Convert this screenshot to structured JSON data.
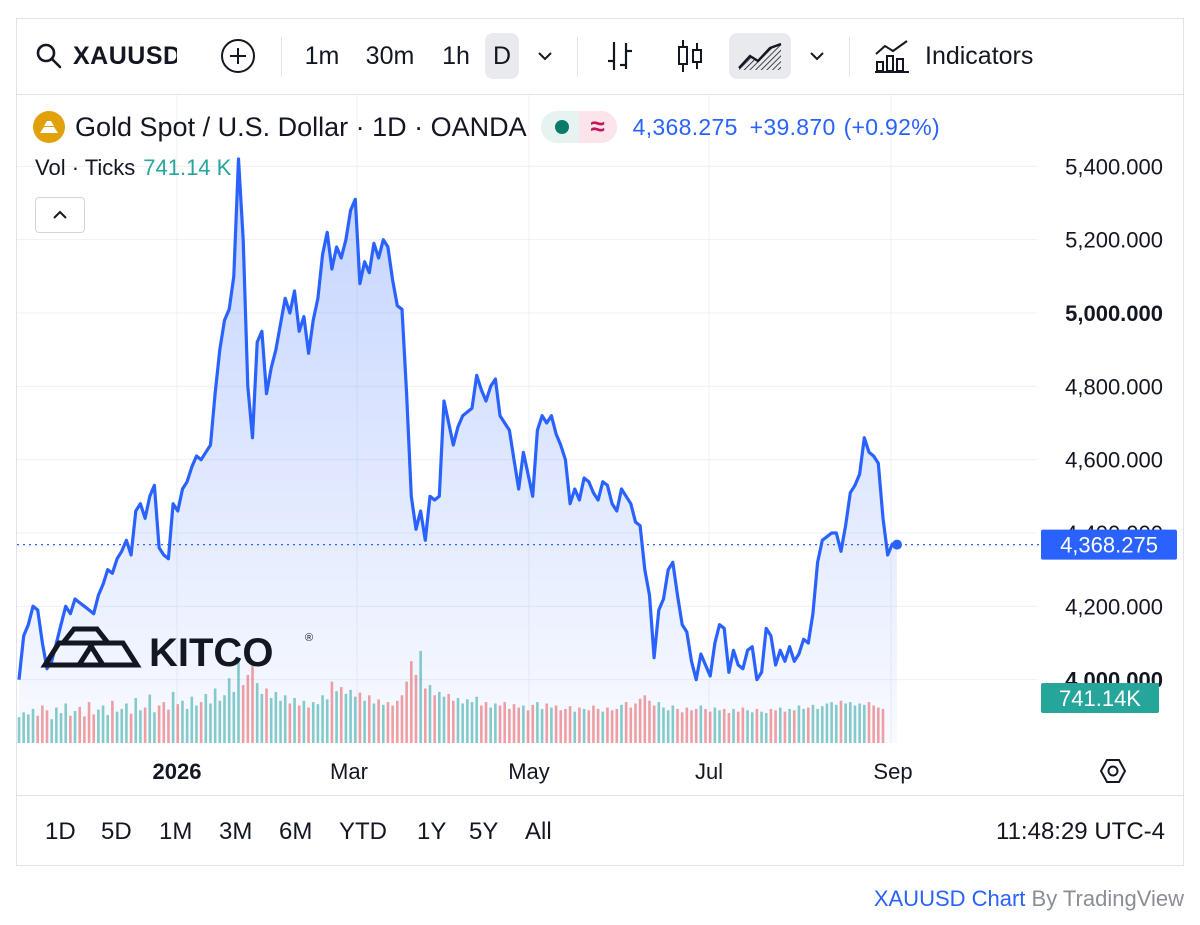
{
  "toolbar": {
    "symbol": "XAUUSD",
    "intervals": [
      "1m",
      "30m",
      "1h",
      "D"
    ],
    "active_interval": "D",
    "indicators_label": "Indicators"
  },
  "legend": {
    "title": "Gold Spot / U.S. Dollar · 1D · OANDA",
    "last": "4,368.275",
    "change": "+39.870",
    "change_pct": "(+0.92%)",
    "vol_label": "Vol · Ticks",
    "vol_value": "741.14 K"
  },
  "colors": {
    "line": "#2962ff",
    "area": "#2962ff",
    "vol_up": "#26a69a",
    "vol_down": "#ef5350",
    "price_tag": "#2962ff",
    "vol_tag": "#26a69a"
  },
  "watermark": "KITCO",
  "badges": {
    "price": "4,368.275",
    "volume": "741.14K"
  },
  "range_buttons": [
    "1D",
    "5D",
    "1M",
    "3M",
    "6M",
    "YTD",
    "1Y",
    "5Y",
    "All"
  ],
  "clock": "11:48:29 UTC-4",
  "attribution": {
    "link": "XAUUSD Chart",
    "rest": " By TradingView"
  },
  "chart_data": {
    "type": "line",
    "ylim": [
      3980,
      5420
    ],
    "y_ticks": [
      "5,400.000",
      "5,200.000",
      "5,000.000",
      "4,800.000",
      "4,600.000",
      "4,400.000",
      "4,200.000",
      "4,000.000"
    ],
    "y_tick_values": [
      5400,
      5200,
      5000,
      4800,
      4600,
      4400,
      4200,
      4000
    ],
    "x_labels": [
      "2026",
      "Mar",
      "May",
      "Jul",
      "Sep"
    ],
    "last_value": 4368.275,
    "series": [
      {
        "values": [
          4000,
          4120,
          4150,
          4200,
          4190,
          4100,
          4030,
          4050,
          4100,
          4150,
          4200,
          4180,
          4220,
          4210,
          4200,
          4190,
          4180,
          4230,
          4260,
          4300,
          4290,
          4330,
          4350,
          4380,
          4340,
          4460,
          4480,
          4440,
          4500,
          4530,
          4360,
          4340,
          4330,
          4480,
          4460,
          4520,
          4540,
          4580,
          4610,
          4600,
          4620,
          4640,
          4780,
          4900,
          4980,
          5010,
          5100,
          5420,
          5200,
          4800,
          4660,
          4920,
          4950,
          4780,
          4850,
          4900,
          4970,
          5040,
          5000,
          5060,
          4950,
          4990,
          4890,
          4980,
          5040,
          5160,
          5220,
          5120,
          5180,
          5150,
          5200,
          5280,
          5310,
          5080,
          5140,
          5110,
          5190,
          5150,
          5200,
          5180,
          5090,
          5020,
          5010,
          4780,
          4500,
          4410,
          4460,
          4380,
          4500,
          4490,
          4500,
          4760,
          4700,
          4640,
          4690,
          4720,
          4730,
          4740,
          4830,
          4790,
          4760,
          4800,
          4820,
          4720,
          4700,
          4680,
          4600,
          4520,
          4620,
          4560,
          4500,
          4680,
          4720,
          4700,
          4720,
          4670,
          4640,
          4600,
          4480,
          4520,
          4490,
          4550,
          4540,
          4510,
          4490,
          4540,
          4530,
          4480,
          4460,
          4520,
          4500,
          4480,
          4430,
          4420,
          4300,
          4230,
          4060,
          4190,
          4220,
          4300,
          4320,
          4230,
          4150,
          4130,
          4050,
          4000,
          4070,
          4040,
          4010,
          4100,
          4150,
          4140,
          4020,
          4080,
          4040,
          4030,
          4080,
          4090,
          4000,
          4020,
          4140,
          4120,
          4040,
          4080,
          4050,
          4090,
          4050,
          4070,
          4110,
          4100,
          4180,
          4320,
          4380,
          4390,
          4400,
          4400,
          4350,
          4420,
          4510,
          4530,
          4560,
          4660,
          4620,
          4610,
          4590,
          4440,
          4340,
          4370,
          4368
        ]
      }
    ],
    "volume_ratio": [
      0.38,
      0.45,
      0.42,
      0.5,
      0.4,
      0.55,
      0.48,
      0.35,
      0.52,
      0.44,
      0.58,
      0.4,
      0.47,
      0.53,
      0.39,
      0.6,
      0.42,
      0.49,
      0.55,
      0.41,
      0.62,
      0.46,
      0.5,
      0.58,
      0.43,
      0.66,
      0.48,
      0.52,
      0.71,
      0.45,
      0.55,
      0.6,
      0.49,
      0.75,
      0.57,
      0.62,
      0.5,
      0.68,
      0.55,
      0.6,
      0.72,
      0.58,
      0.8,
      0.62,
      0.7,
      0.95,
      0.75,
      1.25,
      0.85,
      1.0,
      1.15,
      0.88,
      0.72,
      0.8,
      0.66,
      0.75,
      0.62,
      0.7,
      0.58,
      0.66,
      0.55,
      0.62,
      0.52,
      0.6,
      0.57,
      0.7,
      0.64,
      0.9,
      0.76,
      0.82,
      0.72,
      0.78,
      0.68,
      0.74,
      0.62,
      0.7,
      0.58,
      0.64,
      0.56,
      0.6,
      0.55,
      0.62,
      0.7,
      0.9,
      1.2,
      1.0,
      1.35,
      0.8,
      0.85,
      0.7,
      0.75,
      0.68,
      0.72,
      0.62,
      0.66,
      0.58,
      0.64,
      0.6,
      0.68,
      0.55,
      0.6,
      0.52,
      0.58,
      0.55,
      0.6,
      0.5,
      0.57,
      0.52,
      0.55,
      0.48,
      0.56,
      0.6,
      0.5,
      0.58,
      0.52,
      0.55,
      0.48,
      0.5,
      0.54,
      0.46,
      0.52,
      0.5,
      0.48,
      0.55,
      0.5,
      0.46,
      0.52,
      0.48,
      0.5,
      0.56,
      0.6,
      0.52,
      0.58,
      0.65,
      0.7,
      0.62,
      0.55,
      0.6,
      0.52,
      0.48,
      0.55,
      0.5,
      0.45,
      0.52,
      0.48,
      0.5,
      0.55,
      0.5,
      0.46,
      0.52,
      0.48,
      0.5,
      0.44,
      0.5,
      0.46,
      0.52,
      0.48,
      0.45,
      0.5,
      0.46,
      0.44,
      0.5,
      0.48,
      0.52,
      0.46,
      0.5,
      0.48,
      0.55,
      0.5,
      0.52,
      0.56,
      0.5,
      0.54,
      0.58,
      0.6,
      0.56,
      0.62,
      0.58,
      0.6,
      0.55,
      0.58,
      0.56,
      0.6,
      0.55,
      0.52,
      0.5
    ]
  }
}
